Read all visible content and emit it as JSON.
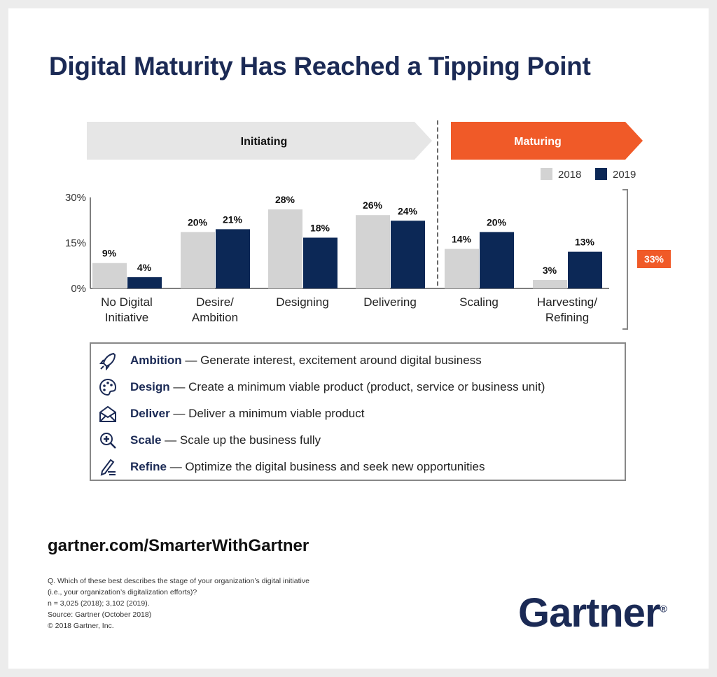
{
  "title": "Digital Maturity Has Reached a Tipping Point",
  "phases": {
    "initiating": "Initiating",
    "maturing": "Maturing"
  },
  "bracket_label": "33%",
  "colors": {
    "y2018": "#d3d3d3",
    "y2019": "#0c2856",
    "maturing": "#f05a28",
    "initiating": "#e6e6e6",
    "navy": "#1b2a55"
  },
  "chart_data": {
    "type": "bar",
    "categories": [
      "No Digital\nInitiative",
      "Desire/\nAmbition",
      "Designing",
      "Delivering",
      "Scaling",
      "Harvesting/\nRefining"
    ],
    "series": [
      {
        "name": "2018",
        "values": [
          9,
          20,
          28,
          26,
          14,
          3
        ]
      },
      {
        "name": "2019",
        "values": [
          4,
          21,
          18,
          24,
          20,
          13
        ]
      }
    ],
    "yticks": [
      "0%",
      "15%",
      "30%"
    ],
    "ylim": [
      0,
      30
    ],
    "legend": "top-right"
  },
  "legend": [
    {
      "icon": "rocket-icon",
      "term": "Ambition",
      "text": " — Generate interest, excitement around digital business"
    },
    {
      "icon": "palette-icon",
      "term": "Design",
      "text": " — Create a minimum viable product (product, service or business unit)"
    },
    {
      "icon": "envelope-icon",
      "term": "Deliver",
      "text": " — Deliver a minimum viable product"
    },
    {
      "icon": "magnify-plus-icon",
      "term": "Scale",
      "text": " — Scale up the business fully"
    },
    {
      "icon": "pen-list-icon",
      "term": "Refine",
      "text": " — Optimize the digital business and seek new opportunities"
    }
  ],
  "url": "gartner.com/SmarterWithGartner",
  "notes": [
    "Q. Which of these best describes the stage of your organization’s digital initiative",
    "(i.e., your organization’s digitalization efforts)?",
    "n = 3,025 (2018); 3,102 (2019).",
    "Source: Gartner (October 2018)",
    "© 2018 Gartner, Inc."
  ],
  "logo": "Gartner"
}
